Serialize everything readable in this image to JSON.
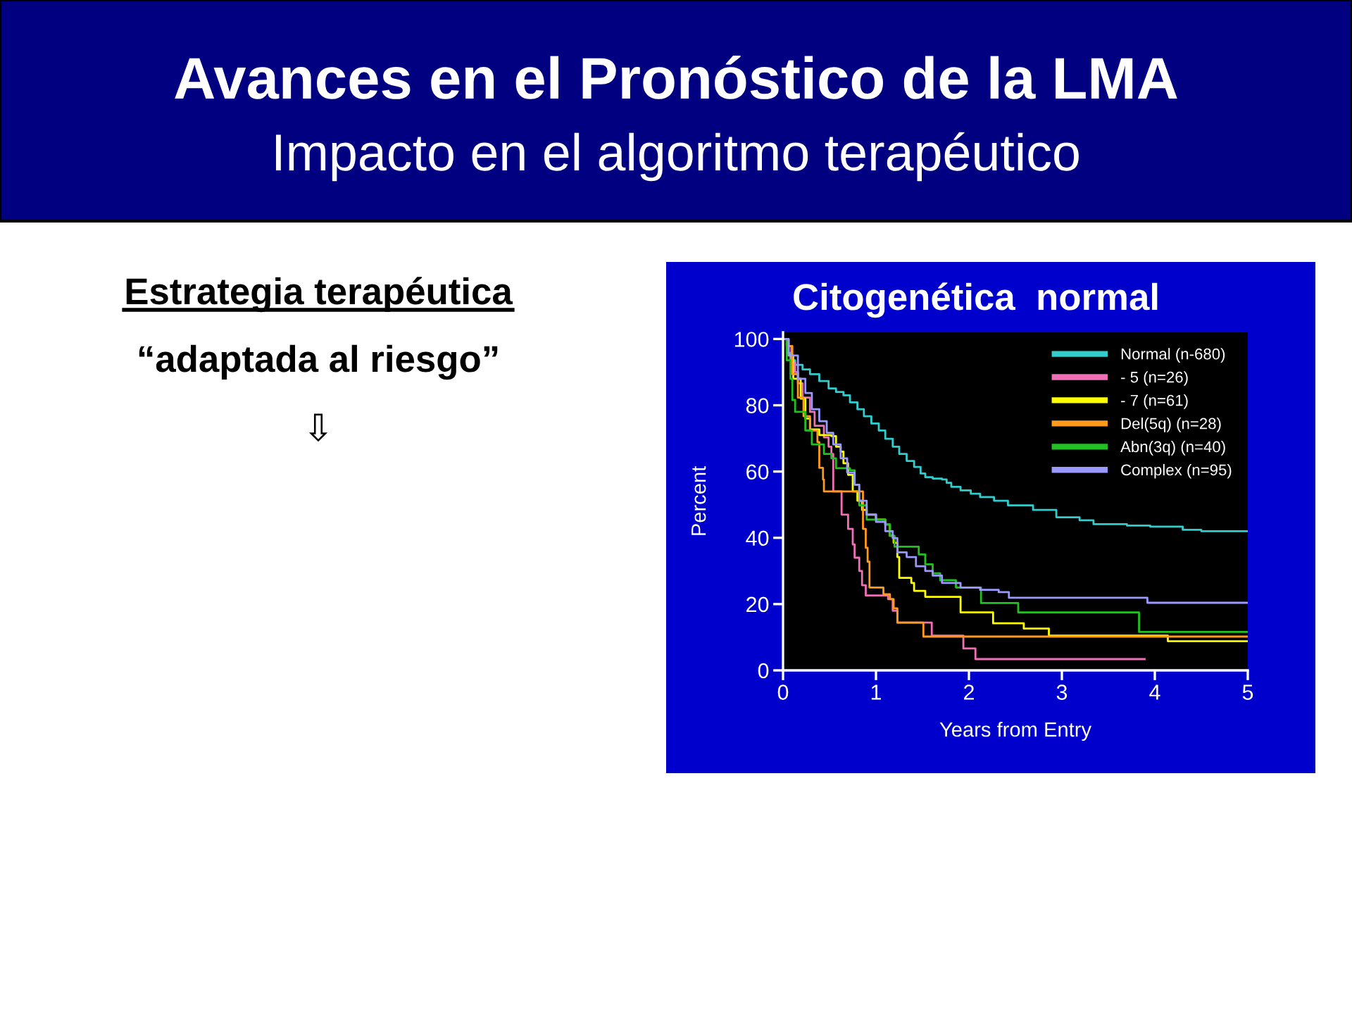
{
  "chart_data": {
    "type": "step",
    "title": "Citogenética  normal",
    "xlabel": "Years from Entry",
    "ylabel": "Percent",
    "annotations": [
      "Avances en el Pronóstico de la LMA",
      "Impacto en el algoritmo terapéutico",
      "Estrategia terapéutica",
      "“adaptada al riesgo”",
      "⇩"
    ],
    "xlim": [
      0,
      5
    ],
    "ylim": [
      0,
      102
    ],
    "xticks": [
      0,
      1,
      2,
      3,
      4,
      5
    ],
    "yticks": [
      0,
      20,
      40,
      60,
      80,
      100
    ],
    "legend": "top right",
    "series": [
      {
        "name": "Normal (n-680)",
        "color": "#33cccc",
        "x": [
          0,
          0.04,
          0.08,
          0.13,
          0.21,
          0.29,
          0.39,
          0.49,
          0.57,
          0.65,
          0.72,
          0.8,
          0.87,
          0.95,
          1.03,
          1.1,
          1.18,
          1.25,
          1.33,
          1.41,
          1.48,
          1.53,
          1.61,
          1.71,
          1.76,
          1.81,
          1.91,
          2.02,
          2.12,
          2.27,
          2.42,
          2.69,
          2.94,
          3.19,
          3.34,
          3.7,
          3.95,
          4.3,
          4.5,
          5
        ],
        "values": [
          100,
          95.8,
          93.6,
          92.2,
          90.8,
          89.4,
          87.3,
          85.1,
          84,
          83,
          80.9,
          78.8,
          76.7,
          74.5,
          72.4,
          69.9,
          67.5,
          65.3,
          63.2,
          61.4,
          59.4,
          58.3,
          57.9,
          57.6,
          56.6,
          55.4,
          54.3,
          53.3,
          52.3,
          51.2,
          49.8,
          48.4,
          46.2,
          45.3,
          44.1,
          43.7,
          43.4,
          42.4,
          42,
          42
        ]
      },
      {
        "name": "- 5 (n=26)",
        "color": "#f070b8",
        "x": [
          0,
          0.04,
          0.09,
          0.13,
          0.16,
          0.21,
          0.29,
          0.34,
          0.44,
          0.49,
          0.52,
          0.54,
          0.63,
          0.7,
          0.75,
          0.77,
          0.82,
          0.85,
          0.89,
          1.13,
          1.18,
          1.23,
          1.6,
          1.94,
          2.07,
          3.89
        ],
        "values": [
          100,
          97.9,
          93,
          90,
          86.6,
          82.3,
          78,
          73.8,
          70.3,
          67.5,
          65.3,
          54,
          47,
          42.7,
          38,
          34,
          30,
          25.7,
          22.6,
          21.5,
          18,
          14.4,
          10.5,
          6.6,
          3.4,
          3.4
        ]
      },
      {
        "name": "- 7 (n=61)",
        "color": "#ffff00",
        "x": [
          0,
          0.06,
          0.11,
          0.19,
          0.24,
          0.29,
          0.39,
          0.52,
          0.57,
          0.62,
          0.65,
          0.7,
          0.75,
          0.8,
          0.85,
          0.9,
          1.0,
          1.1,
          1.15,
          1.19,
          1.23,
          1.25,
          1.38,
          1.41,
          1.53,
          1.91,
          2.26,
          2.59,
          2.86,
          4.14,
          5
        ],
        "values": [
          100,
          95,
          88,
          82,
          76,
          72.7,
          71,
          70.7,
          67.5,
          66,
          62.5,
          59,
          54,
          51.2,
          48.4,
          47,
          45.5,
          44,
          40.6,
          38.5,
          34.2,
          27.9,
          26.4,
          24,
          22.2,
          17.5,
          14.2,
          12.6,
          10.5,
          8.8,
          8.8
        ]
      },
      {
        "name": "Del(5q) (n=28)",
        "color": "#ff9a1e",
        "x": [
          0,
          0.04,
          0.1,
          0.16,
          0.22,
          0.29,
          0.37,
          0.39,
          0.43,
          0.44,
          0.86,
          0.89,
          0.91,
          0.93,
          1.08,
          1.15,
          1.19,
          1.23,
          1.51,
          5
        ],
        "values": [
          100,
          97.9,
          89.4,
          82.3,
          76.7,
          72.4,
          68.9,
          61.1,
          57.6,
          54,
          42.7,
          37,
          32.8,
          25,
          23,
          21.5,
          18.7,
          14.4,
          10.2,
          10.2
        ]
      },
      {
        "name": "Abn(3q) (n=40)",
        "color": "#22c022",
        "x": [
          0,
          0.04,
          0.08,
          0.1,
          0.13,
          0.24,
          0.31,
          0.44,
          0.52,
          0.57,
          0.72,
          0.77,
          0.82,
          0.9,
          1.1,
          1.15,
          1.2,
          1.46,
          1.53,
          1.61,
          1.69,
          1.86,
          2.13,
          2.53,
          3.83,
          5
        ],
        "values": [
          100,
          93.6,
          88,
          81.6,
          78,
          72.4,
          68.2,
          65.3,
          64,
          61,
          60.4,
          56,
          49.8,
          45.5,
          44,
          40.6,
          37.3,
          35,
          32,
          29.3,
          27.2,
          25,
          20.3,
          17.5,
          11.6,
          11.6
        ]
      },
      {
        "name": "Complex (n=95)",
        "color": "#9999ff",
        "x": [
          0,
          0.06,
          0.16,
          0.24,
          0.31,
          0.39,
          0.47,
          0.54,
          0.62,
          0.69,
          0.77,
          0.82,
          0.9,
          1.0,
          1.1,
          1.18,
          1.23,
          1.33,
          1.43,
          1.53,
          1.61,
          1.71,
          1.91,
          2.12,
          2.32,
          2.43,
          3.92,
          5
        ],
        "values": [
          100,
          95,
          88,
          83.7,
          78.8,
          75.2,
          71.7,
          68.2,
          64,
          59.7,
          56,
          51.2,
          47,
          44.8,
          42,
          39.9,
          35.6,
          34.2,
          31.4,
          30,
          28.6,
          26.4,
          25,
          24.3,
          23.6,
          21.9,
          20.4,
          20.4
        ]
      }
    ]
  }
}
